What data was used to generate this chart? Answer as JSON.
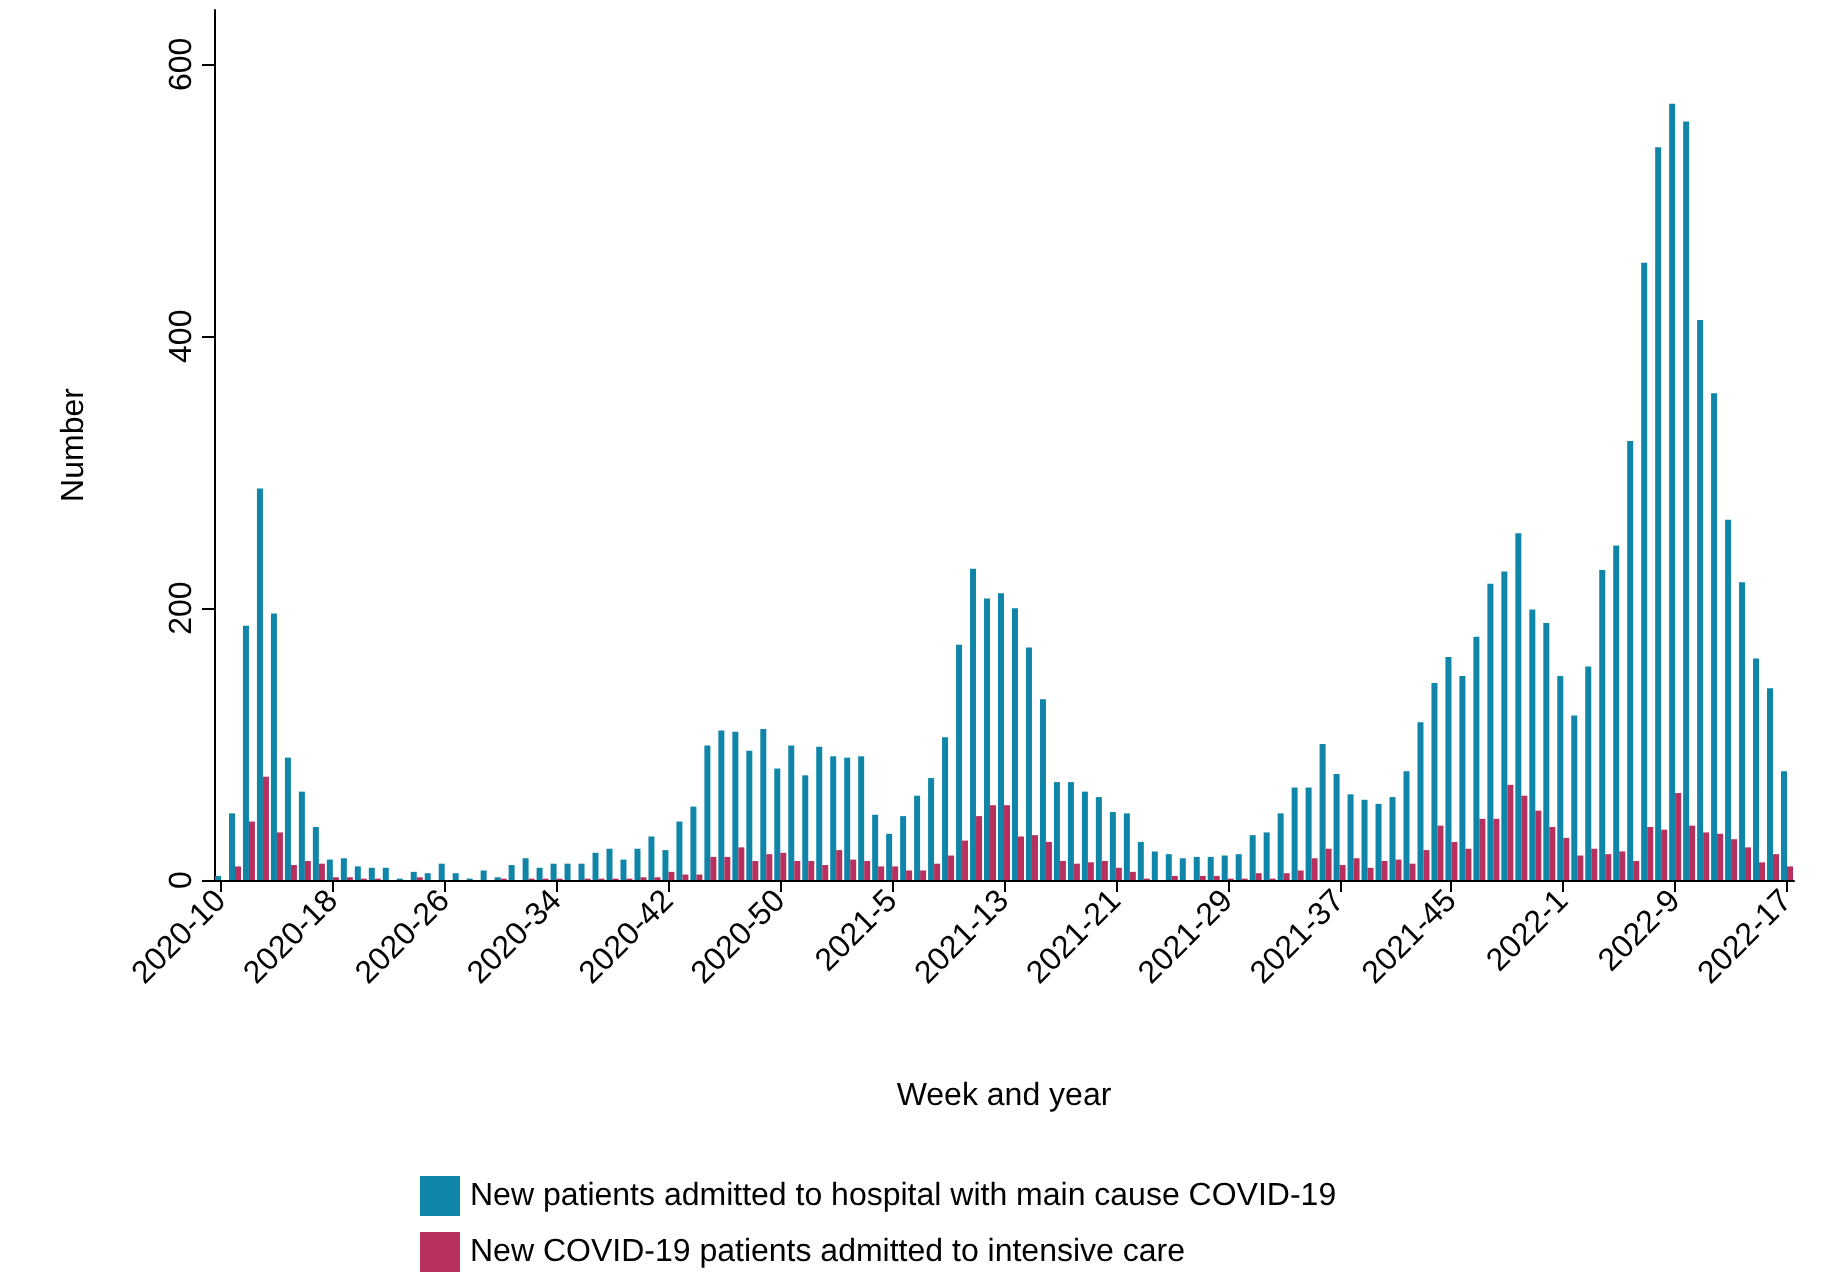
{
  "chart_data": {
    "type": "bar",
    "xlabel": "Week and year",
    "ylabel": "Number",
    "legend": "bottom",
    "ylim": [
      0,
      640
    ],
    "yticks": [
      0,
      200,
      400,
      600
    ],
    "categories": [
      "2020-10",
      null,
      null,
      null,
      null,
      null,
      null,
      null,
      "2020-18",
      null,
      null,
      null,
      null,
      null,
      null,
      null,
      "2020-26",
      null,
      null,
      null,
      null,
      null,
      null,
      null,
      "2020-34",
      null,
      null,
      null,
      null,
      null,
      null,
      null,
      "2020-42",
      null,
      null,
      null,
      null,
      null,
      null,
      null,
      "2020-50",
      null,
      null,
      null,
      null,
      null,
      null,
      null,
      "2021-5",
      null,
      null,
      null,
      null,
      null,
      null,
      null,
      "2021-13",
      null,
      null,
      null,
      null,
      null,
      null,
      null,
      "2021-21",
      null,
      null,
      null,
      null,
      null,
      null,
      null,
      "2021-29",
      null,
      null,
      null,
      null,
      null,
      null,
      null,
      "2021-37",
      null,
      null,
      null,
      null,
      null,
      null,
      null,
      "2021-45",
      null,
      null,
      null,
      null,
      null,
      null,
      null,
      "2022-1",
      null,
      null,
      null,
      null,
      null,
      null,
      null,
      "2022-9",
      null,
      null,
      null,
      null,
      null,
      null,
      null,
      "2022-17"
    ],
    "series": [
      {
        "name": "New patients admitted to hospital with main cause COVID-19",
        "color": "#0f86a8",
        "values": [
          3,
          49,
          187,
          288,
          196,
          90,
          65,
          39,
          15,
          16,
          10,
          9,
          9,
          1,
          6,
          5,
          12,
          5,
          1,
          7,
          2,
          11,
          16,
          9,
          12,
          12,
          12,
          20,
          23,
          15,
          23,
          32,
          22,
          43,
          54,
          99,
          110,
          109,
          95,
          111,
          82,
          99,
          77,
          98,
          91,
          90,
          91,
          48,
          34,
          47,
          62,
          75,
          105,
          173,
          229,
          207,
          211,
          200,
          171,
          133,
          72,
          72,
          65,
          61,
          50,
          49,
          28,
          21,
          19,
          16,
          17,
          17,
          18,
          19,
          33,
          35,
          49,
          68,
          68,
          100,
          78,
          63,
          59,
          56,
          61,
          80,
          116,
          145,
          164,
          150,
          179,
          218,
          227,
          255,
          199,
          189,
          150,
          121,
          157,
          228,
          246,
          323,
          454,
          539,
          571,
          558,
          412,
          358,
          265,
          219,
          163,
          141,
          80
        ]
      },
      {
        "name": "New COVID-19 patients admitted to intensive care",
        "color": "#b8305e",
        "values": [
          0,
          10,
          43,
          76,
          35,
          11,
          14,
          12,
          2,
          2,
          1,
          1,
          0,
          0,
          2,
          0,
          0,
          0,
          0,
          0,
          1,
          0,
          1,
          1,
          1,
          0,
          1,
          1,
          1,
          1,
          2,
          2,
          6,
          4,
          4,
          17,
          17,
          24,
          14,
          19,
          20,
          14,
          14,
          11,
          22,
          15,
          14,
          10,
          10,
          7,
          7,
          12,
          18,
          29,
          47,
          55,
          55,
          32,
          33,
          28,
          14,
          12,
          13,
          14,
          9,
          6,
          1,
          0,
          3,
          0,
          3,
          3,
          1,
          1,
          5,
          1,
          5,
          7,
          16,
          23,
          11,
          16,
          9,
          14,
          15,
          12,
          22,
          40,
          28,
          23,
          45,
          45,
          70,
          62,
          51,
          39,
          31,
          18,
          23,
          19,
          21,
          14,
          39,
          37,
          64,
          40,
          35,
          34,
          30,
          24,
          13,
          19,
          10
        ]
      }
    ]
  }
}
